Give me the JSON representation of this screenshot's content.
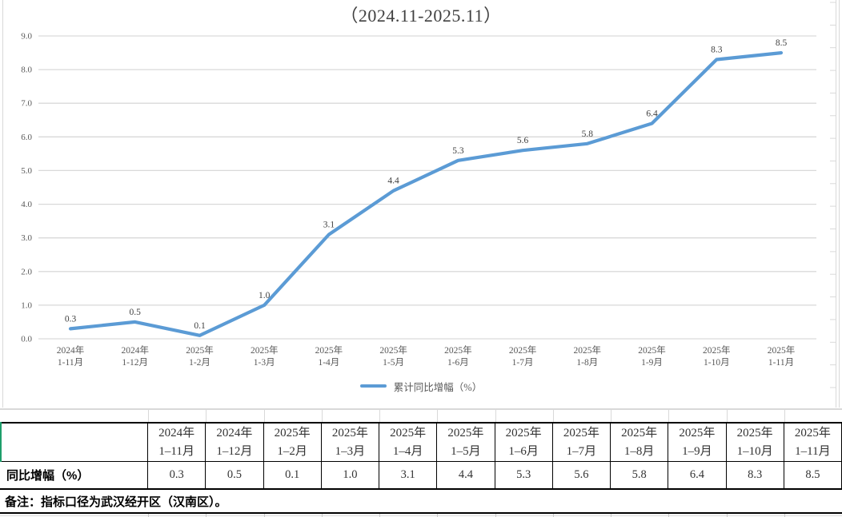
{
  "title": "（2024.11-2025.11）",
  "legend": {
    "label": "累计同比增幅（%）"
  },
  "chart_data": {
    "type": "line",
    "title": "（2024.11-2025.11）",
    "series": [
      {
        "name": "累计同比增幅（%）",
        "values": [
          0.3,
          0.5,
          0.1,
          1.0,
          3.1,
          4.4,
          5.3,
          5.6,
          5.8,
          6.4,
          8.3,
          8.5
        ]
      }
    ],
    "categories": [
      [
        "2024年",
        "1-11月"
      ],
      [
        "2024年",
        "1-12月"
      ],
      [
        "2025年",
        "1-2月"
      ],
      [
        "2025年",
        "1-3月"
      ],
      [
        "2025年",
        "1-4月"
      ],
      [
        "2025年",
        "1-5月"
      ],
      [
        "2025年",
        "1-6月"
      ],
      [
        "2025年",
        "1-7月"
      ],
      [
        "2025年",
        "1-8月"
      ],
      [
        "2025年",
        "1-9月"
      ],
      [
        "2025年",
        "1-10月"
      ],
      [
        "2025年",
        "1-11月"
      ]
    ],
    "data_labels": [
      "0.3",
      "0.5",
      "0.1",
      "1.0",
      "3.1",
      "4.4",
      "5.3",
      "5.6",
      "5.8",
      "6.4",
      "8.3",
      "8.5"
    ],
    "y_ticks": [
      "0.0",
      "1.0",
      "2.0",
      "3.0",
      "4.0",
      "5.0",
      "6.0",
      "7.0",
      "8.0",
      "9.0"
    ],
    "ylim": [
      0,
      9
    ],
    "grid": true,
    "legend_position": "bottom",
    "line_color": "#5B9BD5"
  },
  "table": {
    "corner_label": "",
    "columns": [
      [
        "2024年",
        "1–11月"
      ],
      [
        "2024年",
        "1–12月"
      ],
      [
        "2025年",
        "1–2月"
      ],
      [
        "2025年",
        "1–3月"
      ],
      [
        "2025年",
        "1–4月"
      ],
      [
        "2025年",
        "1–5月"
      ],
      [
        "2025年",
        "1–6月"
      ],
      [
        "2025年",
        "1–7月"
      ],
      [
        "2025年",
        "1–8月"
      ],
      [
        "2025年",
        "1–9月"
      ],
      [
        "2025年",
        "1–10月"
      ],
      [
        "2025年",
        "1–11月"
      ]
    ],
    "row_label": "同比增幅（%）",
    "values": [
      "0.3",
      "0.5",
      "0.1",
      "1.0",
      "3.1",
      "4.4",
      "5.3",
      "5.6",
      "5.8",
      "6.4",
      "8.3",
      "8.5"
    ],
    "note": "备注：指标口径为武汉经开区（汉南区）。"
  },
  "colors": {
    "line": "#5B9BD5",
    "grid": "#D9D9D9",
    "axis_text": "#595959",
    "table_border": "#000000",
    "header_accent_green": "#1E9E6B"
  }
}
